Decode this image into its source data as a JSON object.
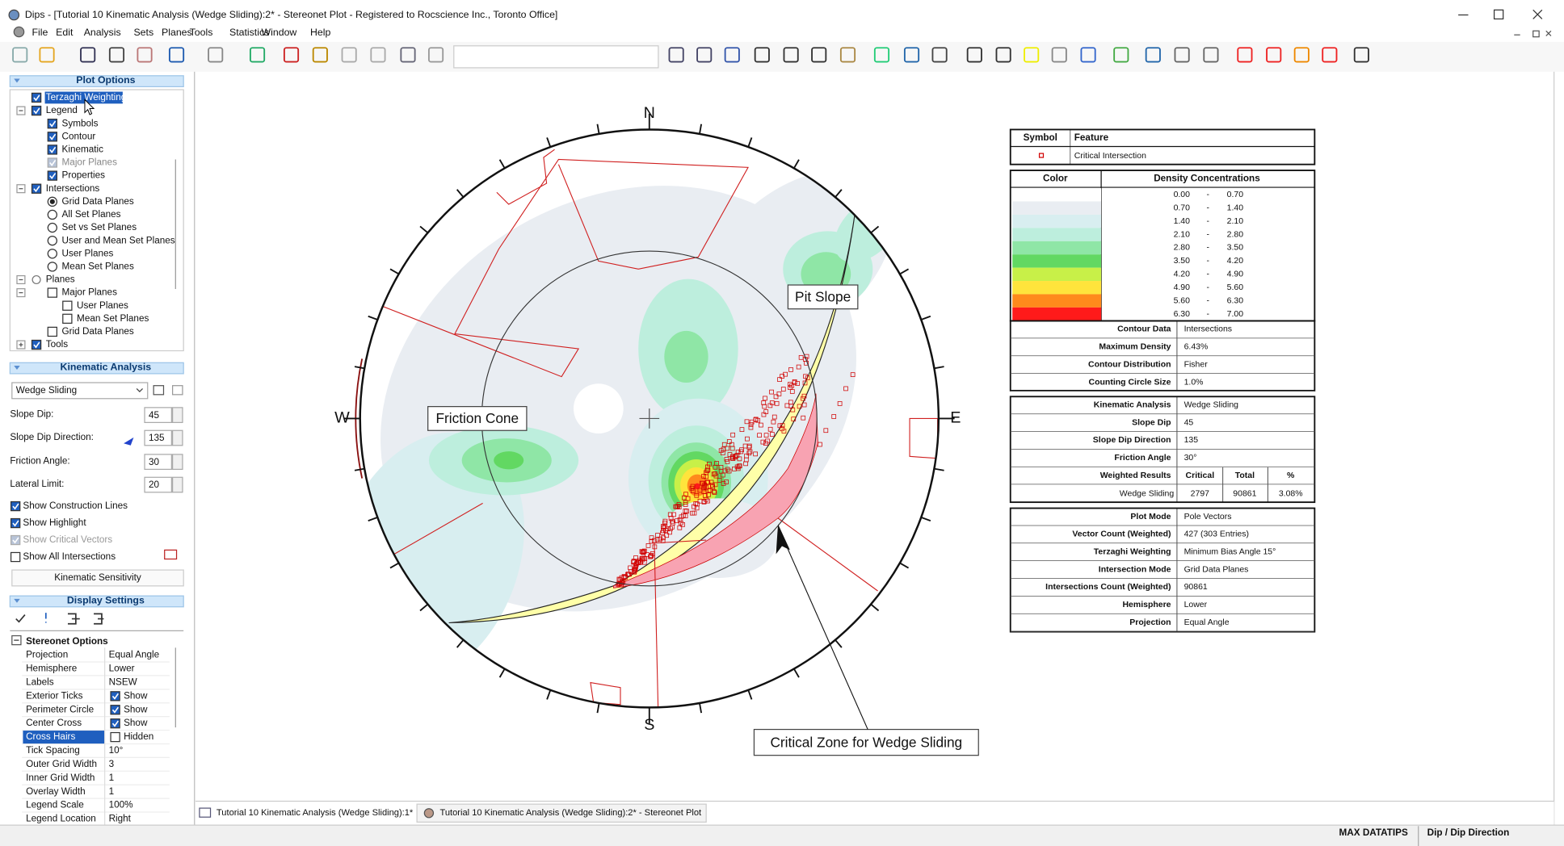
{
  "window": {
    "title": "Dips - [Tutorial 10 Kinematic Analysis (Wedge Sliding):2* - Stereonet Plot - Registered to Rocscience Inc., Toronto Office]"
  },
  "menu": [
    "File",
    "Edit",
    "Analysis",
    "Sets",
    "Planes",
    "Tools",
    "Statistics",
    "Window",
    "Help"
  ],
  "plot_options": {
    "title": "Plot Options",
    "tree": [
      "Terzaghi Weighting",
      "Legend",
      "Symbols",
      "Contour",
      "Kinematic",
      "Major Planes",
      "Properties",
      "Intersections",
      "Grid Data Planes",
      "All Set Planes",
      "Set vs Set Planes",
      "User and Mean Set Planes",
      "User Planes",
      "Mean Set Planes",
      "Planes",
      "Major Planes",
      "User Planes",
      "Mean Set Planes",
      "Grid Data Planes",
      "Tools"
    ]
  },
  "kinematic": {
    "title": "Kinematic Analysis",
    "mode": "Wedge Sliding",
    "fields": [
      {
        "label": "Slope Dip:",
        "value": "45"
      },
      {
        "label": "Slope Dip Direction:",
        "value": "135"
      },
      {
        "label": "Friction Angle:",
        "value": "30"
      },
      {
        "label": "Lateral Limit:",
        "value": "20"
      }
    ],
    "checks": [
      "Show Construction Lines",
      "Show Highlight",
      "Show Critical Vectors",
      "Show All Intersections"
    ],
    "button": "Kinematic Sensitivity"
  },
  "display": {
    "title": "Display Settings",
    "section": "Stereonet Options",
    "rows": [
      [
        "Projection",
        "Equal Angle"
      ],
      [
        "Hemisphere",
        "Lower"
      ],
      [
        "Labels",
        "NSEW"
      ],
      [
        "Exterior Ticks",
        "Show"
      ],
      [
        "Perimeter Circle",
        "Show"
      ],
      [
        "Center Cross",
        "Show"
      ],
      [
        "Cross Hairs",
        "Hidden"
      ],
      [
        "Tick Spacing",
        "10°"
      ],
      [
        "Outer Grid Width",
        "3"
      ],
      [
        "Inner Grid Width",
        "1"
      ],
      [
        "Overlay Width",
        "1"
      ],
      [
        "Legend Scale",
        "100%"
      ],
      [
        "Legend Location",
        "Right"
      ]
    ]
  },
  "stereonet": {
    "compass": [
      "N",
      "E",
      "S",
      "W"
    ],
    "labels": [
      "Pit Slope",
      "Friction Cone",
      "Critical Zone for Wedge Sliding"
    ]
  },
  "legend": {
    "symbol_header": [
      "Symbol",
      "Feature"
    ],
    "symbol_row": "Critical Intersection",
    "density_header": [
      "Color",
      "Density Concentrations"
    ],
    "separator": "-",
    "density": [
      {
        "from": "0.00",
        "to": "0.70",
        "color": "#ffffff"
      },
      {
        "from": "0.70",
        "to": "1.40",
        "color": "#e9edf2"
      },
      {
        "from": "1.40",
        "to": "2.10",
        "color": "#d8eef0"
      },
      {
        "from": "2.10",
        "to": "2.80",
        "color": "#bdeedd"
      },
      {
        "from": "2.80",
        "to": "3.50",
        "color": "#8fe6a6"
      },
      {
        "from": "3.50",
        "to": "4.20",
        "color": "#62d862"
      },
      {
        "from": "4.20",
        "to": "4.90",
        "color": "#c8f048"
      },
      {
        "from": "4.90",
        "to": "5.60",
        "color": "#ffe43c"
      },
      {
        "from": "5.60",
        "to": "6.30",
        "color": "#ff8a1c"
      },
      {
        "from": "6.30",
        "to": "7.00",
        "color": "#ff1a1a"
      }
    ],
    "contour": [
      [
        "Contour Data",
        "Intersections"
      ],
      [
        "Maximum Density",
        "6.43%"
      ],
      [
        "Contour Distribution",
        "Fisher"
      ],
      [
        "Counting Circle Size",
        "1.0%"
      ]
    ],
    "kinematic": [
      [
        "Kinematic Analysis",
        "Wedge Sliding"
      ],
      [
        "Slope Dip",
        "45"
      ],
      [
        "Slope Dip Direction",
        "135"
      ],
      [
        "Friction Angle",
        "30°"
      ]
    ],
    "results_header": [
      "Weighted Results",
      "Critical",
      "Total",
      "%"
    ],
    "results_row": [
      "Wedge Sliding",
      "2797",
      "90861",
      "3.08%"
    ],
    "plot": [
      [
        "Plot Mode",
        "Pole Vectors"
      ],
      [
        "Vector Count (Weighted)",
        "427 (303 Entries)"
      ],
      [
        "Terzaghi Weighting",
        "Minimum Bias Angle 15°"
      ],
      [
        "Intersection Mode",
        "Grid Data Planes"
      ],
      [
        "Intersections Count (Weighted)",
        "90861"
      ],
      [
        "Hemisphere",
        "Lower"
      ],
      [
        "Projection",
        "Equal Angle"
      ]
    ]
  },
  "tabs": [
    "Tutorial 10 Kinematic Analysis (Wedge Sliding):1*",
    "Tutorial 10 Kinematic Analysis (Wedge Sliding):2* - Stereonet Plot"
  ],
  "status": [
    "MAX DATATIPS",
    "Dip / Dip Direction"
  ]
}
